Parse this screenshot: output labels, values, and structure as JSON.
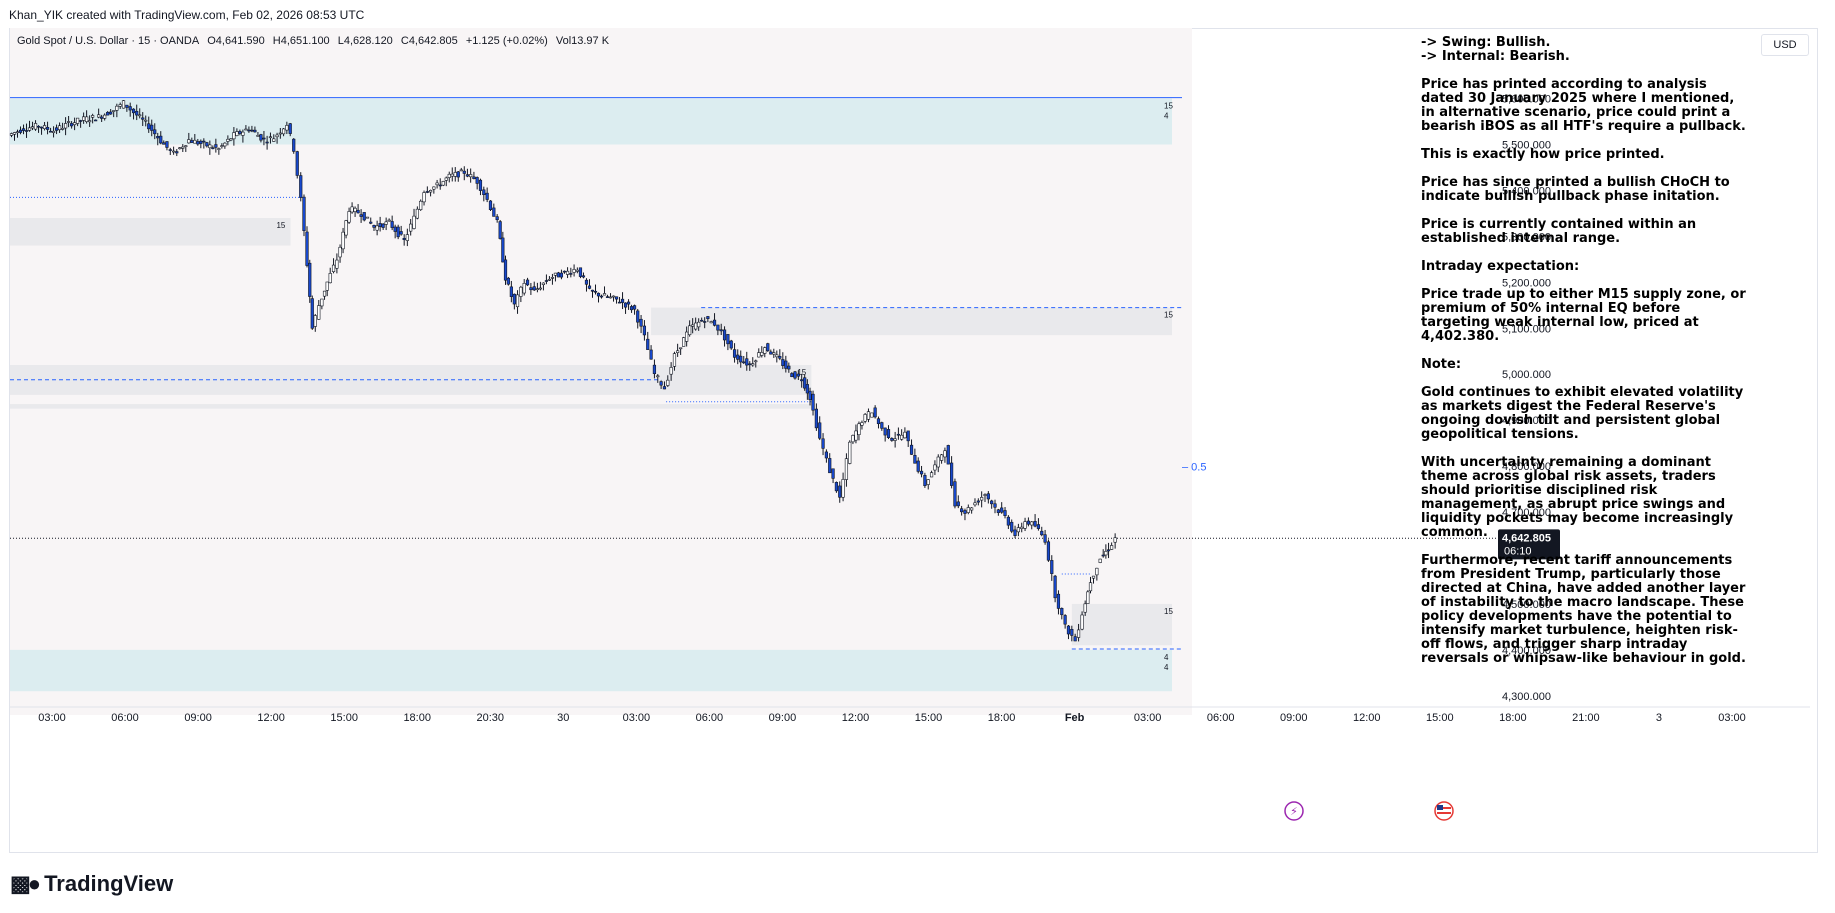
{
  "header": {
    "attribution": "Khan_YIK created with TradingView.com, Feb 02, 2026 08:53 UTC"
  },
  "legend": {
    "symbol": "Gold Spot / U.S. Dollar · 15 · OANDA",
    "open": "O4,641.590",
    "high": "H4,651.100",
    "low": "L4,628.120",
    "close": "C4,642.805",
    "change": "+1.125 (+0.02%)",
    "volume": "Vol13.97 K"
  },
  "currency_button": "USD",
  "notes": [
    "-> Swing: Bullish.",
    "-> Internal: Bearish.",
    "Price has printed according to analysis dated 30 January 2025 where I mentioned, in alternative scenario, price could print a bearish iBOS as all HTF's require a pullback.",
    "This is exactly how price printed.",
    "Price has since printed a bullish CHoCH to indicate bullish pullback phase initation.",
    "Price is currently contained within an established internal range.",
    "Intraday expectation:",
    "Price trade up to either M15 supply zone, or premium of 50% internal EQ before targeting weak internal low, priced at 4,402.380.",
    "Note:",
    "Gold continues to exhibit elevated volatility as markets digest the Federal Reserve's ongoing dovish tilt and persistent global geopolitical tensions.",
    "With uncertainty remaining a dominant theme across global risk assets, traders should prioritise disciplined risk management, as abrupt price swings and liquidity pockets may become increasingly common.",
    "Furthermore, recent tariff announcements from President Trump, particularly those directed at China, have added another layer of instability to the macro landscape. These policy developments have the potential to intensify market turbulence, heighten risk-off flows, and trigger sharp intraday reversals or whipsaw-like behaviour in gold."
  ],
  "chart_data": {
    "type": "candlestick",
    "ylim": [
      4280,
      5710
    ],
    "y_ticks": [
      {
        "value": 5600,
        "label": "5,600.000"
      },
      {
        "value": 5500,
        "label": "5,500.000"
      },
      {
        "value": 5400,
        "label": "5,400.000"
      },
      {
        "value": 5300,
        "label": "5,300.000"
      },
      {
        "value": 5200,
        "label": "5,200.000"
      },
      {
        "value": 5100,
        "label": "5,100.000"
      },
      {
        "value": 5000,
        "label": "5,000.000"
      },
      {
        "value": 4900,
        "label": "4,900.000"
      },
      {
        "value": 4800,
        "label": "4,800.000"
      },
      {
        "value": 4700,
        "label": "4,700.000"
      },
      {
        "value": 4500,
        "label": "4,500.000"
      },
      {
        "value": 4400,
        "label": "4,400.000"
      },
      {
        "value": 4300,
        "label": "4,300.000"
      }
    ],
    "x_ticks": [
      "03:00",
      "06:00",
      "09:00",
      "12:00",
      "15:00",
      "18:00",
      "20:30",
      "30",
      "03:00",
      "06:00",
      "09:00",
      "12:00",
      "15:00",
      "18:00",
      "Feb",
      "03:00",
      "06:00",
      "09:00",
      "12:00",
      "15:00",
      "18:00",
      "21:00",
      "3",
      "03:00"
    ],
    "current_price": {
      "value": 4642.805,
      "label": "4,642.805",
      "countdown": "06:10"
    },
    "eq_label": "0.5",
    "zones": [
      {
        "kind": "demand-HTF",
        "y1": 5500,
        "y2": 5600,
        "x_start": 0,
        "labels": [
          "15",
          "4"
        ]
      },
      {
        "kind": "supply",
        "y1": 5280,
        "y2": 5340,
        "x_start": 0,
        "x_end": 280,
        "labels": [
          "15"
        ]
      },
      {
        "kind": "supply",
        "y1": 5085,
        "y2": 5145,
        "x_start": 640,
        "labels": [
          "15"
        ]
      },
      {
        "kind": "supply",
        "y1": 4955,
        "y2": 5020,
        "x_start": 0,
        "x_end": 800,
        "labels": [
          "15"
        ]
      },
      {
        "kind": "supply",
        "y1": 4925,
        "y2": 4935,
        "x_start": 0,
        "x_end": 800,
        "labels": []
      },
      {
        "kind": "internal-range",
        "y1": 4410,
        "y2": 4500,
        "x_start": 1060,
        "labels": [
          "15"
        ]
      },
      {
        "kind": "demand-HTF",
        "y1": 4310,
        "y2": 4400,
        "x_start": 0,
        "labels": [
          "4",
          "4"
        ]
      }
    ],
    "levels": [
      {
        "kind": "solid",
        "value": 5602
      },
      {
        "kind": "dotted",
        "value": 5385,
        "x_end": 290
      },
      {
        "kind": "dashed",
        "value": 4988,
        "x_end": 650
      },
      {
        "kind": "dashed",
        "value": 5145,
        "x_start": 690
      },
      {
        "kind": "dotted",
        "value": 4940,
        "x_start": 655,
        "x_end": 800
      },
      {
        "kind": "dashed",
        "value": 4402,
        "x_start": 1060
      },
      {
        "kind": "dotted",
        "value": 4565,
        "x_start": 1050,
        "x_end": 1080
      },
      {
        "kind": "dotted-current",
        "value": 4643
      }
    ],
    "price_path": [
      [
        0,
        5520
      ],
      [
        15,
        5535
      ],
      [
        30,
        5540
      ],
      [
        45,
        5530
      ],
      [
        60,
        5545
      ],
      [
        75,
        5555
      ],
      [
        90,
        5560
      ],
      [
        105,
        5575
      ],
      [
        115,
        5590
      ],
      [
        125,
        5570
      ],
      [
        140,
        5540
      ],
      [
        155,
        5500
      ],
      [
        165,
        5480
      ],
      [
        180,
        5510
      ],
      [
        195,
        5500
      ],
      [
        210,
        5490
      ],
      [
        225,
        5520
      ],
      [
        240,
        5535
      ],
      [
        255,
        5510
      ],
      [
        265,
        5515
      ],
      [
        278,
        5545
      ],
      [
        285,
        5490
      ],
      [
        292,
        5380
      ],
      [
        298,
        5240
      ],
      [
        303,
        5100
      ],
      [
        310,
        5150
      ],
      [
        318,
        5200
      ],
      [
        328,
        5250
      ],
      [
        340,
        5360
      ],
      [
        352,
        5350
      ],
      [
        365,
        5320
      ],
      [
        380,
        5330
      ],
      [
        395,
        5290
      ],
      [
        405,
        5340
      ],
      [
        415,
        5400
      ],
      [
        428,
        5410
      ],
      [
        440,
        5430
      ],
      [
        455,
        5440
      ],
      [
        468,
        5420
      ],
      [
        478,
        5380
      ],
      [
        488,
        5330
      ],
      [
        496,
        5210
      ],
      [
        505,
        5150
      ],
      [
        515,
        5200
      ],
      [
        525,
        5180
      ],
      [
        540,
        5210
      ],
      [
        555,
        5220
      ],
      [
        568,
        5230
      ],
      [
        580,
        5180
      ],
      [
        595,
        5170
      ],
      [
        610,
        5160
      ],
      [
        625,
        5140
      ],
      [
        635,
        5080
      ],
      [
        645,
        5000
      ],
      [
        655,
        4970
      ],
      [
        665,
        5040
      ],
      [
        680,
        5100
      ],
      [
        695,
        5120
      ],
      [
        705,
        5110
      ],
      [
        715,
        5080
      ],
      [
        725,
        5040
      ],
      [
        740,
        5020
      ],
      [
        755,
        5060
      ],
      [
        770,
        5030
      ],
      [
        782,
        5000
      ],
      [
        792,
        4990
      ],
      [
        800,
        4950
      ],
      [
        810,
        4860
      ],
      [
        820,
        4790
      ],
      [
        830,
        4730
      ],
      [
        840,
        4850
      ],
      [
        852,
        4900
      ],
      [
        862,
        4920
      ],
      [
        872,
        4880
      ],
      [
        882,
        4860
      ],
      [
        895,
        4870
      ],
      [
        905,
        4810
      ],
      [
        915,
        4760
      ],
      [
        925,
        4800
      ],
      [
        935,
        4840
      ],
      [
        945,
        4720
      ],
      [
        955,
        4700
      ],
      [
        965,
        4720
      ],
      [
        975,
        4740
      ],
      [
        985,
        4710
      ],
      [
        995,
        4690
      ],
      [
        1005,
        4650
      ],
      [
        1015,
        4680
      ],
      [
        1025,
        4670
      ],
      [
        1035,
        4640
      ],
      [
        1045,
        4520
      ],
      [
        1055,
        4450
      ],
      [
        1065,
        4420
      ],
      [
        1072,
        4480
      ],
      [
        1080,
        4550
      ],
      [
        1090,
        4600
      ],
      [
        1098,
        4620
      ],
      [
        1105,
        4643
      ]
    ],
    "x_span": 1170
  }
}
